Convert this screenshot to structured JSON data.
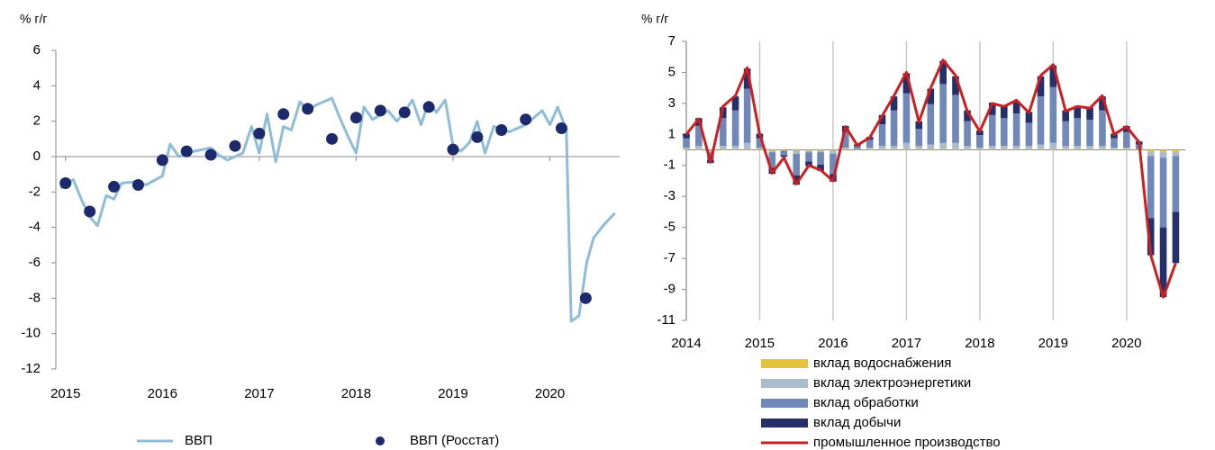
{
  "chart_data": [
    {
      "type": "line",
      "y_label": "% г/г",
      "xlim": [
        2014.9,
        2020.72
      ],
      "xticks": [
        2015,
        2016,
        2017,
        2018,
        2019,
        2020
      ],
      "ylim": [
        -12,
        6
      ],
      "yticks": [
        -12,
        -10,
        -8,
        -6,
        -4,
        -2,
        0,
        2,
        4,
        6
      ],
      "series": [
        {
          "name": "ВВП",
          "type": "line",
          "color": "#8fbcd8",
          "x": [
            2014.95,
            2015.08,
            2015.17,
            2015.25,
            2015.33,
            2015.42,
            2015.5,
            2015.58,
            2015.75,
            2015.83,
            2016.0,
            2016.08,
            2016.17,
            2016.33,
            2016.5,
            2016.58,
            2016.67,
            2016.83,
            2016.92,
            2017.0,
            2017.08,
            2017.17,
            2017.25,
            2017.33,
            2017.42,
            2017.5,
            2017.58,
            2017.75,
            2017.83,
            2017.92,
            2018.0,
            2018.08,
            2018.17,
            2018.33,
            2018.42,
            2018.5,
            2018.58,
            2018.67,
            2018.75,
            2018.83,
            2018.92,
            2019.0,
            2019.08,
            2019.17,
            2019.25,
            2019.33,
            2019.42,
            2019.58,
            2019.75,
            2019.92,
            2020.0,
            2020.08,
            2020.17,
            2020.22,
            2020.3,
            2020.38,
            2020.45,
            2020.55,
            2020.67
          ],
          "values": [
            -1.8,
            -1.3,
            -2.5,
            -3.4,
            -3.9,
            -2.2,
            -2.4,
            -1.5,
            -1.4,
            -1.6,
            -1.1,
            0.7,
            0.0,
            0.3,
            0.5,
            0.1,
            -0.2,
            0.2,
            1.7,
            0.2,
            2.4,
            -0.3,
            1.7,
            1.5,
            3.1,
            2.6,
            2.9,
            3.3,
            2.2,
            1.1,
            0.2,
            2.8,
            2.1,
            2.6,
            2.0,
            2.5,
            3.2,
            1.8,
            3.1,
            2.5,
            3.2,
            0.6,
            0.3,
            0.8,
            2.0,
            0.2,
            1.7,
            1.4,
            1.8,
            2.6,
            1.8,
            2.8,
            1.5,
            -9.3,
            -9.0,
            -6.0,
            -4.6,
            -3.9,
            -3.2
          ]
        },
        {
          "name": "ВВП (Росстат)",
          "type": "scatter",
          "color": "#1c2a6b",
          "x": [
            2015.0,
            2015.25,
            2015.5,
            2015.75,
            2016.0,
            2016.25,
            2016.5,
            2016.75,
            2017.0,
            2017.25,
            2017.5,
            2017.75,
            2018.0,
            2018.25,
            2018.5,
            2018.75,
            2019.0,
            2019.25,
            2019.5,
            2019.75,
            2020.12,
            2020.37
          ],
          "values": [
            -1.5,
            -3.1,
            -1.7,
            -1.6,
            -0.2,
            0.3,
            0.1,
            0.6,
            1.3,
            2.4,
            2.7,
            1.0,
            2.2,
            2.6,
            2.5,
            2.8,
            0.4,
            1.1,
            1.5,
            2.1,
            1.6,
            -8.0
          ]
        }
      ]
    },
    {
      "type": "bar",
      "stacked": true,
      "y_label": "% г/г",
      "grid": true,
      "xlim": [
        2014,
        2020.8
      ],
      "xticks": [
        2014,
        2015,
        2016,
        2017,
        2018,
        2019,
        2020
      ],
      "ylim": [
        -11,
        7
      ],
      "yticks": [
        -11,
        -9,
        -7,
        -5,
        -3,
        -1,
        1,
        3,
        5,
        7
      ],
      "x": [
        2014.0,
        2014.17,
        2014.33,
        2014.5,
        2014.67,
        2014.83,
        2015.0,
        2015.17,
        2015.33,
        2015.5,
        2015.67,
        2015.83,
        2016.0,
        2016.17,
        2016.33,
        2016.5,
        2016.67,
        2016.83,
        2017.0,
        2017.17,
        2017.33,
        2017.5,
        2017.67,
        2017.83,
        2018.0,
        2018.17,
        2018.33,
        2018.5,
        2018.67,
        2018.83,
        2019.0,
        2019.17,
        2019.33,
        2019.5,
        2019.67,
        2019.83,
        2020.0,
        2020.17,
        2020.33,
        2020.5,
        2020.67
      ],
      "series": [
        {
          "name": "вклад водоснабжения",
          "type": "bar",
          "color": "#e3c43c",
          "values": [
            0.05,
            0.05,
            -0.05,
            0.05,
            0.05,
            0.05,
            0.05,
            -0.05,
            -0.05,
            -0.05,
            -0.05,
            -0.05,
            -0.05,
            0.05,
            0.05,
            0.05,
            0.05,
            0.05,
            0.05,
            0.05,
            0.05,
            0.05,
            0.05,
            0.05,
            0.05,
            0.05,
            0.05,
            0.05,
            0.05,
            0.05,
            0.05,
            0.05,
            0.05,
            0.05,
            0.05,
            0.05,
            0.05,
            0.05,
            -0.1,
            -0.1,
            -0.1
          ]
        },
        {
          "name": "вклад электроэнергетики",
          "type": "bar",
          "color": "#a9bccd",
          "values": [
            0.1,
            0.2,
            -0.1,
            0.2,
            0.2,
            0.4,
            0.1,
            -0.1,
            0,
            -0.2,
            -0.1,
            -0.1,
            -0.2,
            0.1,
            0,
            0.1,
            0.2,
            0.2,
            0.4,
            0.2,
            0.3,
            0.4,
            0.4,
            0.2,
            0.1,
            0.2,
            0.2,
            0.2,
            0.2,
            0.3,
            0.4,
            0.2,
            0.2,
            0.2,
            0.2,
            0.1,
            0.1,
            0,
            -0.3,
            -0.4,
            -0.3
          ]
        },
        {
          "name": "вклад обработки",
          "type": "bar",
          "color": "#7088b8",
          "values": [
            0.6,
            1.3,
            -0.5,
            1.8,
            2.3,
            3.5,
            0.6,
            -1.0,
            -0.3,
            -1.4,
            -0.6,
            -0.8,
            -1.3,
            1.0,
            0.2,
            0.5,
            1.4,
            2.3,
            3.2,
            1.1,
            2.6,
            3.8,
            3.1,
            1.6,
            0.8,
            2.0,
            1.8,
            2.1,
            1.5,
            3.1,
            3.6,
            1.6,
            1.8,
            1.7,
            2.3,
            0.6,
            1.0,
            0.3,
            -4.0,
            -4.5,
            -3.6
          ]
        },
        {
          "name": "вклад добычи",
          "type": "bar",
          "color": "#25306a",
          "values": [
            0.3,
            0.5,
            -0.2,
            0.7,
            0.9,
            1.3,
            0.3,
            -0.4,
            -0.1,
            -0.6,
            -0.3,
            -0.4,
            -0.5,
            0.4,
            0.1,
            0.2,
            0.6,
            0.9,
            1.3,
            0.5,
            1.0,
            1.5,
            1.2,
            0.7,
            0.3,
            0.8,
            0.8,
            0.8,
            0.7,
            1.3,
            1.4,
            0.7,
            0.8,
            0.8,
            0.9,
            0.3,
            0.4,
            0.2,
            -2.4,
            -4.5,
            -3.3
          ]
        },
        {
          "name": "промышленное производство",
          "type": "line",
          "color": "#cc1f1f",
          "values": [
            1.0,
            2.0,
            -0.8,
            2.8,
            3.5,
            5.3,
            1.0,
            -1.5,
            -0.5,
            -2.2,
            -1.0,
            -1.3,
            -2.0,
            1.5,
            0.3,
            0.8,
            2.2,
            3.5,
            5.0,
            1.8,
            4.0,
            5.8,
            4.8,
            2.5,
            1.2,
            3.0,
            2.8,
            3.2,
            2.4,
            4.8,
            5.5,
            2.5,
            2.8,
            2.7,
            3.5,
            1.0,
            1.5,
            0.5,
            -6.8,
            -9.5,
            -7.3
          ]
        }
      ]
    }
  ]
}
